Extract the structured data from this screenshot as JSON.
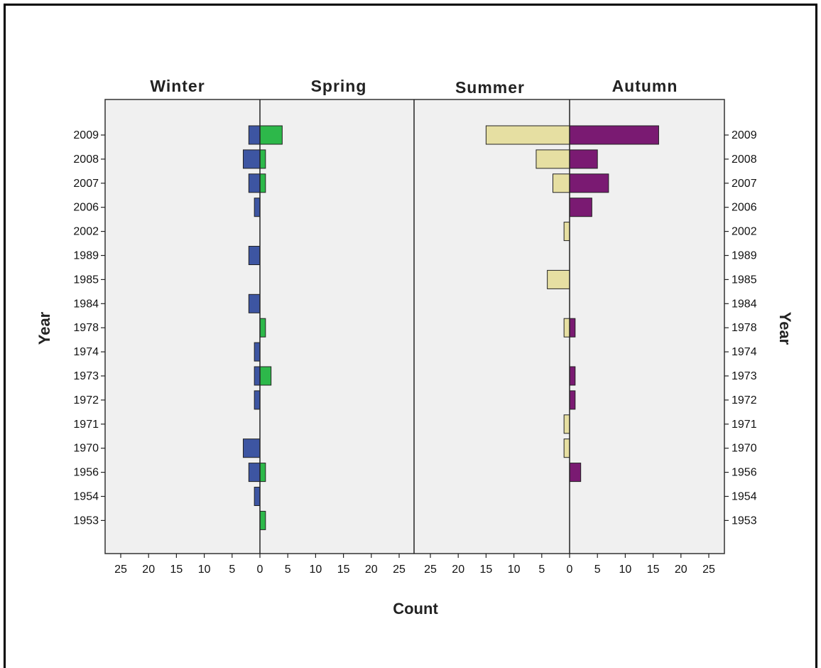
{
  "chart_data": {
    "type": "bar",
    "orientation": "horizontal-population-pyramid",
    "panels": [
      {
        "left": "Winter",
        "right": "Spring"
      },
      {
        "left": "Summer",
        "right": "Autumn"
      }
    ],
    "categories": [
      "2009",
      "2008",
      "2007",
      "2006",
      "2002",
      "1989",
      "1985",
      "1984",
      "1978",
      "1974",
      "1973",
      "1972",
      "1971",
      "1970",
      "1956",
      "1954",
      "1953"
    ],
    "series": [
      {
        "name": "Winter",
        "color": "#3d55a2",
        "values": [
          2,
          3,
          2,
          1,
          0,
          2,
          0,
          2,
          0,
          1,
          1,
          1,
          0,
          3,
          2,
          1,
          0
        ]
      },
      {
        "name": "Spring",
        "color": "#2db84a",
        "values": [
          4,
          1,
          1,
          0,
          0,
          0,
          0,
          0,
          1,
          0,
          2,
          0,
          0,
          0,
          1,
          0,
          1
        ]
      },
      {
        "name": "Summer",
        "color": "#e6dfa2",
        "values": [
          15,
          6,
          3,
          0,
          1,
          0,
          4,
          0,
          1,
          0,
          0,
          0,
          1,
          1,
          0,
          0,
          0
        ]
      },
      {
        "name": "Autumn",
        "color": "#7a1a72",
        "values": [
          16,
          5,
          7,
          4,
          0,
          0,
          0,
          0,
          1,
          0,
          1,
          1,
          0,
          0,
          2,
          0,
          0
        ]
      }
    ],
    "x_ticks": [
      "25",
      "20",
      "15",
      "10",
      "5",
      "0",
      "5",
      "10",
      "15",
      "20",
      "25"
    ],
    "xlabel": "Count",
    "ylabel": "Year",
    "xlim": [
      0,
      25
    ],
    "grid": false,
    "background": "#f0f0f0"
  }
}
